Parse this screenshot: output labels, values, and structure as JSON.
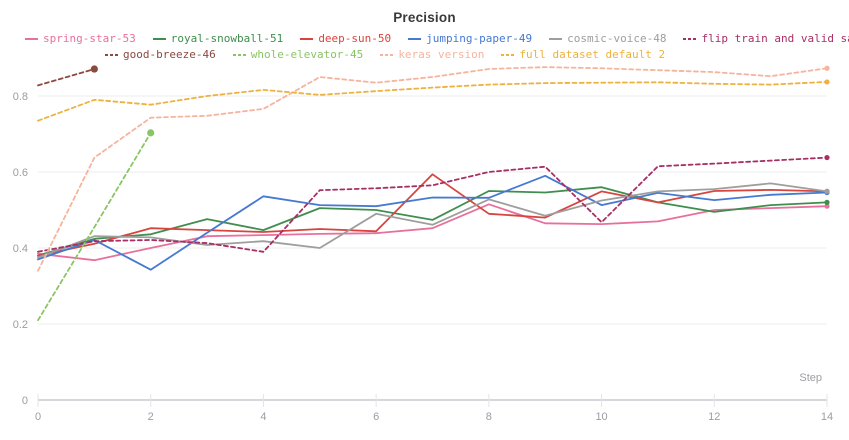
{
  "title": "Precision",
  "axis": {
    "x_label": "Step",
    "x_tick_values": [
      0,
      2,
      4,
      6,
      8,
      10,
      12,
      14
    ],
    "x_tick_labels": [
      "0",
      "2",
      "4",
      "6",
      "8",
      "10",
      "12",
      "14"
    ],
    "y_tick_values": [
      0,
      0.2,
      0.4,
      0.6,
      0.8
    ],
    "y_tick_labels": [
      "0",
      "0.2",
      "0.4",
      "0.6",
      "0.8"
    ]
  },
  "legend": {
    "rows": [
      [
        0,
        1,
        2,
        3,
        4,
        5
      ],
      [
        6,
        7,
        8,
        9
      ]
    ]
  },
  "colors": {
    "grid_line": "#ececec",
    "axis_line": "#d5d7da",
    "tick_mark": "#e2e4e6",
    "tick_text": "#9b9da1",
    "title_text": "#3a3a3a"
  },
  "chart_data": {
    "type": "line",
    "title": "Precision",
    "xlabel": "Step",
    "ylabel": "",
    "xlim": [
      0,
      14
    ],
    "ylim": [
      0,
      0.9
    ],
    "grid": "horizontal-light",
    "legend_position": "top",
    "series": [
      {
        "name": "spring-star-53",
        "color": "#e8709d",
        "style": "solid",
        "x": [
          0,
          1,
          2,
          3,
          4,
          5,
          6,
          7,
          8,
          9,
          10,
          11,
          12,
          13,
          14
        ],
        "values": [
          0.385,
          0.368,
          0.4,
          0.431,
          0.434,
          0.437,
          0.439,
          0.452,
          0.515,
          0.465,
          0.463,
          0.47,
          0.5,
          0.505,
          0.51
        ]
      },
      {
        "name": "royal-snowball-51",
        "color": "#3f8e4e",
        "style": "solid",
        "x": [
          0,
          1,
          2,
          3,
          4,
          5,
          6,
          7,
          8,
          9,
          10,
          11,
          12,
          13,
          14
        ],
        "values": [
          0.38,
          0.424,
          0.436,
          0.476,
          0.447,
          0.505,
          0.5,
          0.474,
          0.55,
          0.546,
          0.56,
          0.52,
          0.495,
          0.513,
          0.52
        ]
      },
      {
        "name": "deep-sun-50",
        "color": "#d8453e",
        "style": "solid",
        "x": [
          0,
          1,
          2,
          3,
          4,
          5,
          6,
          7,
          8,
          9,
          10,
          11,
          12,
          13,
          14
        ],
        "values": [
          0.38,
          0.411,
          0.452,
          0.447,
          0.442,
          0.45,
          0.444,
          0.594,
          0.49,
          0.48,
          0.549,
          0.52,
          0.55,
          0.553,
          0.549
        ]
      },
      {
        "name": "jumping-paper-49",
        "color": "#4679d2",
        "style": "solid",
        "x": [
          0,
          1,
          2,
          3,
          4,
          5,
          6,
          7,
          8,
          9,
          10,
          11,
          12,
          13,
          14
        ],
        "values": [
          0.37,
          0.421,
          0.343,
          0.44,
          0.536,
          0.513,
          0.51,
          0.533,
          0.532,
          0.59,
          0.513,
          0.545,
          0.526,
          0.54,
          0.546
        ]
      },
      {
        "name": "cosmic-voice-48",
        "color": "#9e9e9e",
        "style": "solid",
        "x": [
          0,
          1,
          2,
          3,
          4,
          5,
          6,
          7,
          8,
          9,
          10,
          11,
          12,
          13,
          14
        ],
        "values": [
          0.375,
          0.431,
          0.428,
          0.408,
          0.418,
          0.4,
          0.49,
          0.461,
          0.528,
          0.485,
          0.525,
          0.549,
          0.555,
          0.57,
          0.549
        ]
      },
      {
        "name": "flip train and valid sample",
        "color": "#a82e63",
        "style": "dashed",
        "x": [
          0,
          1,
          2,
          3,
          4,
          5,
          6,
          7,
          8,
          9,
          10,
          11,
          12,
          13,
          14
        ],
        "values": [
          0.39,
          0.418,
          0.421,
          0.413,
          0.39,
          0.552,
          0.557,
          0.565,
          0.6,
          0.614,
          0.468,
          0.615,
          0.622,
          0.63,
          0.638
        ]
      },
      {
        "name": "good-breeze-46",
        "color": "#8a4a40",
        "style": "dashed",
        "x": [
          0,
          1
        ],
        "values": [
          0.828,
          0.871
        ]
      },
      {
        "name": "whole-elevator-45",
        "color": "#8ac564",
        "style": "dashed",
        "x": [
          0,
          1,
          2
        ],
        "values": [
          0.21,
          0.455,
          0.703
        ]
      },
      {
        "name": "keras version",
        "color": "#f5b49e",
        "style": "dashed",
        "x": [
          0,
          1,
          2,
          3,
          4,
          5,
          6,
          7,
          8,
          9,
          10,
          11,
          12,
          13,
          14
        ],
        "values": [
          0.34,
          0.638,
          0.743,
          0.748,
          0.766,
          0.85,
          0.835,
          0.85,
          0.871,
          0.876,
          0.873,
          0.868,
          0.863,
          0.852,
          0.873
        ]
      },
      {
        "name": "full dataset default 2",
        "color": "#edb23f",
        "style": "dashed",
        "x": [
          0,
          1,
          2,
          3,
          4,
          5,
          6,
          7,
          8,
          9,
          10,
          11,
          12,
          13,
          14
        ],
        "values": [
          0.735,
          0.79,
          0.777,
          0.8,
          0.816,
          0.803,
          0.813,
          0.822,
          0.83,
          0.834,
          0.835,
          0.836,
          0.832,
          0.83,
          0.837
        ]
      }
    ]
  }
}
